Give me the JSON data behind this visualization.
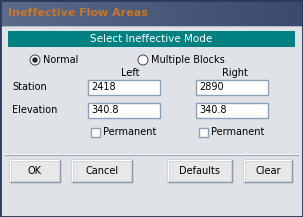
{
  "title": "Ineffective Flow Areas",
  "title_color": "#c8762a",
  "header_text": "Select Ineffective Mode",
  "header_bg": "#008080",
  "header_fg": "#ffffff",
  "dialog_bg": "#dfe3e8",
  "titlebar_bg_left": "#6a7a8c",
  "titlebar_bg_right": "#3a4a5a",
  "outer_border": "#2a3a5a",
  "radio1_label": "Normal",
  "radio2_label": "Multiple Blocks",
  "col_left": "Left",
  "col_right": "Right",
  "row1_label": "Station",
  "row2_label": "Elevation",
  "left_station": "2418",
  "right_station": "2890",
  "left_elevation": "340.8",
  "right_elevation": "340.8",
  "checkbox_label": "Permanent",
  "buttons": [
    "OK",
    "Cancel",
    "Defaults",
    "Clear"
  ],
  "input_bg": "#ffffff",
  "input_border": "#8aa0b8",
  "button_bg": "#e8e8e8",
  "title_fontsize": 8,
  "header_fontsize": 7.5,
  "label_fontsize": 7,
  "button_fontsize": 7
}
